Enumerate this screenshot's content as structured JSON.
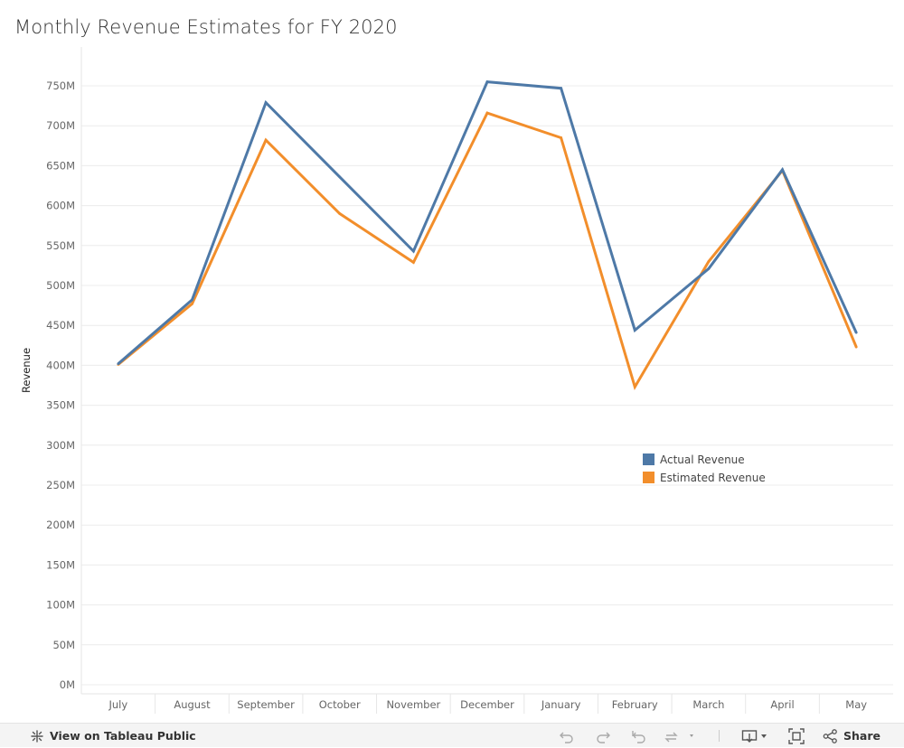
{
  "title": "Monthly Revenue Estimates for FY 2020",
  "chart_data": {
    "type": "line",
    "title": "Monthly Revenue Estimates for FY 2020",
    "xlabel": "",
    "ylabel": "Revenue",
    "x": [
      "July",
      "August",
      "September",
      "October",
      "November",
      "December",
      "January",
      "February",
      "March",
      "April",
      "May"
    ],
    "series": [
      {
        "name": "Actual Revenue",
        "color": "#4e79a7",
        "values": [
          402,
          482,
          729,
          636,
          543,
          755,
          747,
          444,
          521,
          645,
          441
        ]
      },
      {
        "name": "Estimated Revenue",
        "color": "#f28e2b",
        "values": [
          401,
          477,
          682,
          590,
          529,
          716,
          685,
          373,
          530,
          644,
          423
        ]
      }
    ],
    "unit": "M",
    "ylim": [
      0,
      760
    ],
    "yticks": [
      0,
      50,
      100,
      150,
      200,
      250,
      300,
      350,
      400,
      450,
      500,
      550,
      600,
      650,
      700,
      750
    ],
    "ytick_labels": [
      "0M",
      "50M",
      "100M",
      "150M",
      "200M",
      "250M",
      "300M",
      "350M",
      "400M",
      "450M",
      "500M",
      "550M",
      "600M",
      "650M",
      "700M",
      "750M"
    ],
    "grid": true,
    "legend_position": "inside-lower-right"
  },
  "toolbar": {
    "view_label": "View on Tableau Public",
    "share_label": "Share",
    "icons": {
      "logo": "tableau-logo-icon",
      "undo": "undo-icon",
      "redo": "redo-icon",
      "revert": "revert-icon",
      "refresh": "refresh-icon",
      "download": "download-icon",
      "fullscreen": "fullscreen-icon",
      "share": "share-icon"
    }
  }
}
